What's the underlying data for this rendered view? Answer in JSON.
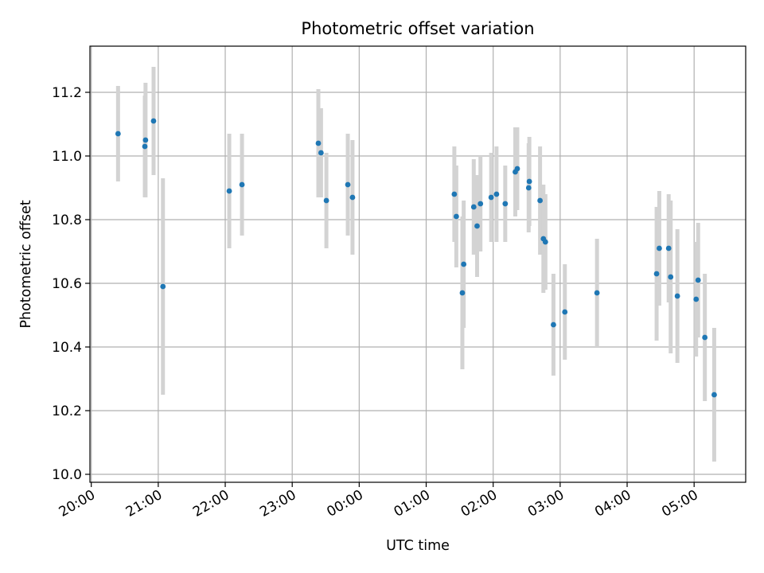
{
  "chart_data": {
    "type": "scatter",
    "title": "Photometric offset variation",
    "xlabel": "UTC time",
    "ylabel": "Photometric offset",
    "grid": true,
    "x_ticks": [
      "20:00",
      "21:00",
      "22:00",
      "23:00",
      "00:00",
      "01:00",
      "02:00",
      "03:00",
      "04:00",
      "05:00"
    ],
    "y_ticks": [
      "10.0",
      "10.2",
      "10.4",
      "10.6",
      "10.8",
      "11.0",
      "11.2"
    ],
    "xlim_hours": [
      19.98,
      29.77
    ],
    "ylim": [
      9.975,
      11.345
    ],
    "colors": {
      "point": "#1f77b4",
      "errorbar": "#d3d3d3",
      "grid": "#b0b0b0"
    },
    "series": [
      {
        "x_hours": [
          20.4,
          20.8,
          20.81,
          20.93,
          21.07,
          22.06,
          22.25,
          23.39,
          23.43,
          23.51,
          23.83,
          23.9,
          25.42,
          25.45,
          25.54,
          25.56,
          25.71,
          25.76,
          25.81,
          25.97,
          26.05,
          26.18,
          26.33,
          26.36,
          26.53,
          26.54,
          26.7,
          26.75,
          26.78,
          26.9,
          27.07,
          27.55,
          28.44,
          28.48,
          28.62,
          28.65,
          28.75,
          29.03,
          29.06,
          29.16,
          29.3
        ],
        "y": [
          11.07,
          11.03,
          11.05,
          11.11,
          10.59,
          10.89,
          10.91,
          11.04,
          11.01,
          10.86,
          10.91,
          10.87,
          10.88,
          10.81,
          10.57,
          10.66,
          10.84,
          10.78,
          10.85,
          10.87,
          10.88,
          10.85,
          10.95,
          10.96,
          10.9,
          10.92,
          10.86,
          10.74,
          10.73,
          10.47,
          10.51,
          10.57,
          10.63,
          10.71,
          10.71,
          10.62,
          10.56,
          10.55,
          10.61,
          10.43,
          10.25
        ],
        "yerr": [
          0.15,
          0.16,
          0.18,
          0.17,
          0.34,
          0.18,
          0.16,
          0.17,
          0.14,
          0.15,
          0.16,
          0.18,
          0.15,
          0.16,
          0.24,
          0.2,
          0.15,
          0.16,
          0.15,
          0.14,
          0.15,
          0.12,
          0.14,
          0.13,
          0.14,
          0.14,
          0.17,
          0.17,
          0.15,
          0.16,
          0.15,
          0.17,
          0.21,
          0.18,
          0.17,
          0.24,
          0.21,
          0.18,
          0.18,
          0.2,
          0.21
        ]
      }
    ]
  }
}
